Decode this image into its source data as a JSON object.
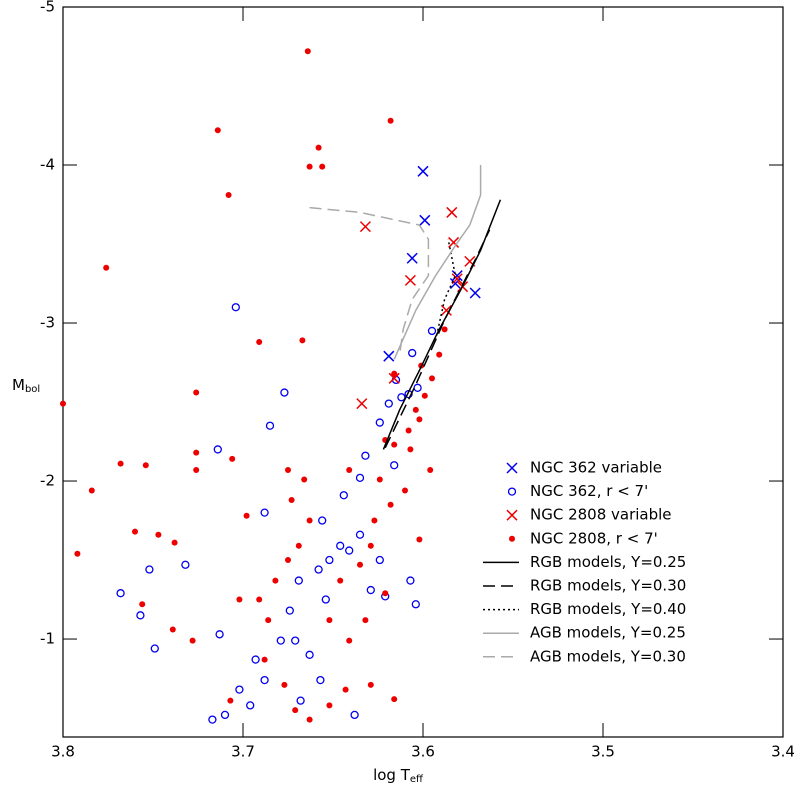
{
  "chart_data": {
    "type": "scatter",
    "x_label": {
      "text": "log T",
      "sub": "eff"
    },
    "y_label": {
      "text": "M",
      "sub": "bol"
    },
    "xlim": [
      3.8,
      3.4
    ],
    "xticks": [
      3.8,
      3.7,
      3.6,
      3.5,
      3.4
    ],
    "ylim": [
      -0.38,
      -5
    ],
    "yticks": [
      -5,
      -4,
      -3,
      -2,
      -1
    ],
    "legend": "lower right",
    "series": [
      {
        "name": "NGC 362 variable",
        "kind": "points",
        "marker": "x",
        "color": "#0000ee",
        "x": [
          3.6,
          3.599,
          3.606,
          3.619,
          3.581,
          3.582,
          3.571
        ],
        "values": [
          -3.96,
          -3.65,
          -3.41,
          -2.79,
          -3.3,
          -3.25,
          -3.19
        ]
      },
      {
        "name": "NGC 362, r < 7'",
        "kind": "points",
        "marker": "circle",
        "color": "#0000ee",
        "x": [
          3.704,
          3.677,
          3.685,
          3.714,
          3.595,
          3.603,
          3.608,
          3.612,
          3.606,
          3.615,
          3.619,
          3.624,
          3.632,
          3.635,
          3.644,
          3.656,
          3.646,
          3.641,
          3.652,
          3.658,
          3.669,
          3.674,
          3.679,
          3.693,
          3.702,
          3.71,
          3.717,
          3.752,
          3.768,
          3.757,
          3.749,
          3.732,
          3.688,
          3.663,
          3.657,
          3.668,
          3.638,
          3.621,
          3.607,
          3.604,
          3.629,
          3.624,
          3.616,
          3.635,
          3.713,
          3.696,
          3.688,
          3.671,
          3.654
        ],
        "values": [
          -3.1,
          -2.56,
          -2.35,
          -2.2,
          -2.95,
          -2.59,
          -2.55,
          -2.53,
          -2.81,
          -2.64,
          -2.49,
          -2.37,
          -2.16,
          -2.02,
          -1.91,
          -1.75,
          -1.59,
          -1.56,
          -1.5,
          -1.44,
          -1.37,
          -1.18,
          -0.99,
          -0.87,
          -0.68,
          -0.52,
          -0.49,
          -1.44,
          -1.29,
          -1.15,
          -0.94,
          -1.47,
          -1.8,
          -0.9,
          -0.74,
          -0.61,
          -0.52,
          -1.27,
          -1.37,
          -1.22,
          -1.31,
          -1.5,
          -2.1,
          -1.66,
          -1.03,
          -0.58,
          -0.74,
          -0.99,
          -1.25
        ]
      },
      {
        "name": "NGC 2808 variable",
        "kind": "points",
        "marker": "x",
        "color": "#ee0000",
        "x": [
          3.632,
          3.607,
          3.634,
          3.584,
          3.583,
          3.574,
          3.581,
          3.578,
          3.587,
          3.616
        ],
        "values": [
          -3.61,
          -3.27,
          -2.49,
          -3.7,
          -3.51,
          -3.39,
          -3.28,
          -3.23,
          -3.08,
          -2.65
        ]
      },
      {
        "name": "NGC 2808, r < 7'",
        "kind": "points",
        "marker": "dot",
        "color": "#ee0000",
        "x": [
          3.664,
          3.714,
          3.658,
          3.618,
          3.663,
          3.656,
          3.708,
          3.776,
          3.8,
          3.691,
          3.667,
          3.726,
          3.768,
          3.754,
          3.784,
          3.726,
          3.726,
          3.706,
          3.792,
          3.76,
          3.747,
          3.738,
          3.756,
          3.739,
          3.728,
          3.698,
          3.675,
          3.666,
          3.673,
          3.663,
          3.669,
          3.675,
          3.682,
          3.691,
          3.686,
          3.688,
          3.677,
          3.671,
          3.663,
          3.652,
          3.643,
          3.629,
          3.616,
          3.641,
          3.632,
          3.652,
          3.646,
          3.635,
          3.629,
          3.627,
          3.618,
          3.61,
          3.624,
          3.616,
          3.607,
          3.596,
          3.602,
          3.604,
          3.599,
          3.595,
          3.591,
          3.588,
          3.601,
          3.608,
          3.621,
          3.641,
          3.616,
          3.621,
          3.602,
          3.702,
          3.707
        ],
        "values": [
          -4.72,
          -4.22,
          -4.11,
          -4.28,
          -3.99,
          -3.99,
          -3.81,
          -3.35,
          -2.49,
          -2.88,
          -2.89,
          -2.56,
          -2.11,
          -2.1,
          -1.94,
          -2.18,
          -2.07,
          -2.14,
          -1.54,
          -1.68,
          -1.66,
          -1.61,
          -1.22,
          -1.06,
          -0.99,
          -1.78,
          -2.07,
          -2.01,
          -1.88,
          -1.75,
          -1.59,
          -1.5,
          -1.37,
          -1.25,
          -1.12,
          -0.87,
          -0.71,
          -0.55,
          -0.49,
          -0.58,
          -0.68,
          -0.71,
          -0.62,
          -0.99,
          -1.12,
          -1.12,
          -1.37,
          -1.47,
          -1.59,
          -1.75,
          -1.85,
          -1.94,
          -2.01,
          -2.23,
          -2.2,
          -2.07,
          -2.39,
          -2.45,
          -2.54,
          -2.65,
          -2.8,
          -2.96,
          -2.73,
          -2.32,
          -2.26,
          -2.07,
          -2.68,
          -1.29,
          -1.63,
          -1.25,
          -0.61
        ]
      },
      {
        "name": "RGB models, Y=0.25",
        "kind": "line",
        "dash": "solid",
        "color": "#000000",
        "x": [
          3.622,
          3.613,
          3.602,
          3.591,
          3.579,
          3.568,
          3.557
        ],
        "values": [
          -2.2,
          -2.45,
          -2.7,
          -2.96,
          -3.21,
          -3.46,
          -3.78
        ]
      },
      {
        "name": "RGB models, Y=0.30",
        "kind": "line",
        "dash": "dashed",
        "color": "#000000",
        "x": [
          3.621,
          3.604,
          3.588,
          3.571,
          3.563
        ],
        "values": [
          -2.21,
          -2.61,
          -3.02,
          -3.4,
          -3.59
        ]
      },
      {
        "name": "RGB models, Y=0.40",
        "kind": "line",
        "dash": "dotted",
        "color": "#000000",
        "x": [
          3.593,
          3.588,
          3.582,
          3.586
        ],
        "values": [
          -2.89,
          -3.15,
          -3.3,
          -3.53
        ]
      },
      {
        "name": "AGB models, Y=0.25",
        "kind": "line",
        "dash": "solid",
        "color": "#aaaaaa",
        "x": [
          3.616,
          3.604,
          3.593,
          3.582,
          3.574,
          3.568,
          3.568
        ],
        "values": [
          -2.77,
          -3.08,
          -3.3,
          -3.49,
          -3.62,
          -3.81,
          -4.0
        ]
      },
      {
        "name": "AGB models, Y=0.30",
        "kind": "line",
        "dash": "dashed",
        "color": "#aaaaaa",
        "x": [
          3.663,
          3.635,
          3.602,
          3.597,
          3.597,
          3.606,
          3.611,
          3.613
        ],
        "values": [
          -3.73,
          -3.7,
          -3.62,
          -3.53,
          -3.3,
          -3.15,
          -2.96,
          -2.8
        ]
      }
    ]
  }
}
